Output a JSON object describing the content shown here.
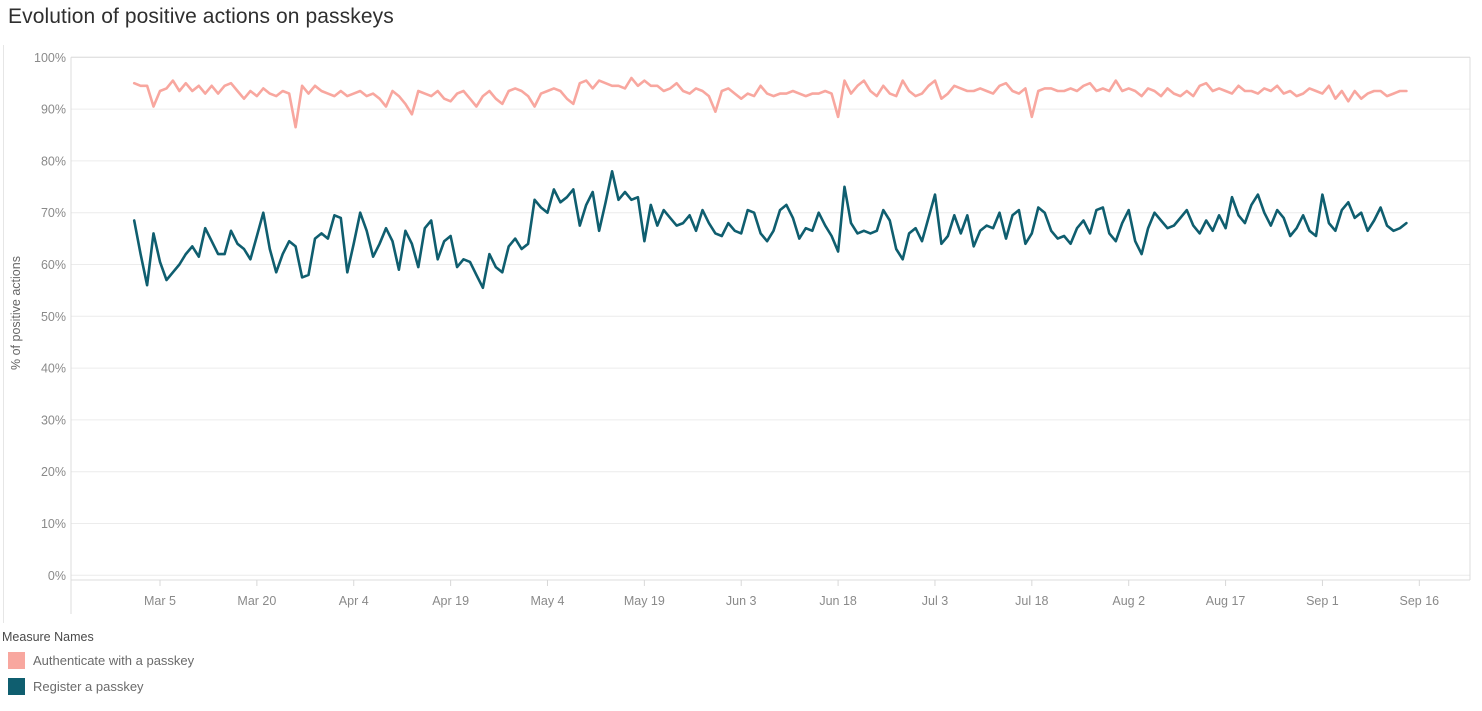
{
  "title": "Evolution of positive actions on passkeys",
  "y_axis": {
    "label": "% of positive actions"
  },
  "legend": {
    "title": "Measure Names",
    "items": [
      {
        "label": "Authenticate with a passkey",
        "color": "#f8a79f"
      },
      {
        "label": "Register a passkey",
        "color": "#0f5e6f"
      }
    ]
  },
  "colors": {
    "grid": "#ececec",
    "plot_border": "#dcdcdc",
    "tick_text": "#8a8a8a",
    "title_text": "#2f2f2f"
  },
  "chart_data": {
    "type": "line",
    "title": "Evolution of positive actions on passkeys",
    "xlabel": "",
    "ylabel": "% of positive actions",
    "ylim": [
      0,
      100
    ],
    "y_tick_labels": [
      "0%",
      "10%",
      "20%",
      "30%",
      "40%",
      "50%",
      "60%",
      "70%",
      "80%",
      "90%",
      "100%"
    ],
    "x_tick_labels": [
      "Mar 5",
      "Mar 20",
      "Apr 4",
      "Apr 19",
      "May 4",
      "May 19",
      "Jun 3",
      "Jun 18",
      "Jul 3",
      "Jul 18",
      "Aug 2",
      "Aug 17",
      "Sep 1",
      "Sep 16"
    ],
    "x_tick_day_indices": [
      4,
      19,
      34,
      49,
      64,
      79,
      94,
      109,
      124,
      139,
      154,
      169,
      184,
      199
    ],
    "x_unit": "day",
    "grid": true,
    "legend_position": "bottom-left",
    "series": [
      {
        "name": "Authenticate with a passkey",
        "color": "#f8a79f",
        "values": [
          95,
          94.5,
          94.5,
          90.5,
          93.5,
          94,
          95.5,
          93.5,
          95,
          93.5,
          94.5,
          93,
          94.5,
          93,
          94.5,
          95,
          93.5,
          92,
          93.5,
          92.5,
          94,
          93,
          92.5,
          93.5,
          93,
          86.5,
          94.5,
          93,
          94.5,
          93.5,
          93,
          92.5,
          93.5,
          92.5,
          93,
          93.5,
          92.5,
          93,
          92,
          90.5,
          93.5,
          92.5,
          91,
          89,
          93.5,
          93,
          92.5,
          93.5,
          92,
          91.5,
          93,
          93.5,
          92,
          90.5,
          92.5,
          93.5,
          92,
          91,
          93.5,
          94,
          93.5,
          92.5,
          90.5,
          93,
          93.5,
          94,
          93.5,
          92,
          91,
          95,
          95.5,
          94,
          95.5,
          95,
          94.5,
          94.5,
          94,
          96,
          94.5,
          95.5,
          94.5,
          94.5,
          93.5,
          94,
          95,
          93.5,
          93,
          94,
          93.5,
          92.5,
          89.5,
          93.5,
          94,
          93,
          92,
          93,
          92.5,
          94.5,
          93,
          92.5,
          93,
          93,
          93.5,
          93,
          92.5,
          93,
          93,
          93.5,
          93,
          88.5,
          95.5,
          93,
          94.5,
          95.5,
          93.5,
          92.5,
          94.5,
          93,
          92.5,
          95.5,
          93.5,
          92.5,
          93,
          94.5,
          95.5,
          92,
          93,
          94.5,
          94,
          93.5,
          93.5,
          94,
          93.5,
          93,
          94.5,
          95,
          93.5,
          93,
          94,
          88.5,
          93.5,
          94,
          94,
          93.5,
          93.5,
          94,
          93.5,
          94.5,
          95,
          93.5,
          94,
          93.5,
          95.5,
          93.5,
          94,
          93.5,
          92.5,
          94,
          93.5,
          92.5,
          94,
          93,
          92.5,
          93.5,
          92.5,
          94.5,
          95,
          93.5,
          94,
          93.5,
          93,
          94.5,
          93.5,
          93.5,
          93,
          94,
          93.5,
          94.5,
          93,
          93.5,
          92.5,
          93,
          94,
          93.5,
          93,
          94.5,
          92,
          93.5,
          91.5,
          93.5,
          92,
          93,
          93.5,
          93.5,
          92.5,
          93,
          93.5,
          93.5
        ]
      },
      {
        "name": "Register a passkey",
        "color": "#0f5e6f",
        "values": [
          68.5,
          62,
          56,
          66,
          60.5,
          57,
          58.5,
          60,
          62,
          63.5,
          61.5,
          67,
          64.5,
          62,
          62,
          66.5,
          64,
          63,
          61,
          65.5,
          70,
          63,
          58.5,
          62,
          64.5,
          63.5,
          57.5,
          58,
          65,
          66,
          65,
          69.5,
          69,
          58.5,
          64,
          70,
          66.5,
          61.5,
          64,
          67,
          64.5,
          59,
          66.5,
          64,
          59.5,
          67,
          68.5,
          61,
          64.5,
          65.5,
          59.5,
          61,
          60.5,
          58,
          55.5,
          62,
          59.5,
          58.5,
          63.5,
          65,
          63,
          64,
          72.5,
          71,
          70,
          74.5,
          72,
          73,
          74.5,
          67.5,
          71.5,
          74,
          66.5,
          72,
          78,
          72.5,
          74,
          72.5,
          73,
          64.5,
          71.5,
          67.5,
          70.5,
          69,
          67.5,
          68,
          69.5,
          66.5,
          70.5,
          68,
          66,
          65.5,
          68,
          66.5,
          66,
          70.5,
          70,
          66,
          64.5,
          66.5,
          70.5,
          71.5,
          69,
          65,
          67,
          66.5,
          70,
          67.5,
          65.5,
          62.5,
          75,
          68,
          66,
          66.5,
          66,
          66.5,
          70.5,
          68.5,
          63,
          61,
          66,
          67,
          64.5,
          69,
          73.5,
          64,
          65.5,
          69.5,
          66,
          69.5,
          63.5,
          66.5,
          67.5,
          67,
          70,
          65,
          69.5,
          70.5,
          64,
          66,
          71,
          70,
          66.5,
          65,
          65.5,
          64,
          67,
          68.5,
          66,
          70.5,
          71,
          66,
          64.5,
          68,
          70.5,
          64.5,
          62,
          67,
          70,
          68.5,
          67,
          67.5,
          69,
          70.5,
          67.5,
          66,
          68.5,
          66.5,
          69.5,
          67,
          73,
          69.5,
          68,
          71.5,
          73.5,
          70,
          67.5,
          70.5,
          69,
          65.5,
          67,
          69.5,
          66.5,
          65.5,
          73.5,
          68,
          66.5,
          70.5,
          72,
          69,
          70,
          66.5,
          68.5,
          71,
          67.5,
          66.5,
          67,
          68
        ]
      }
    ]
  }
}
